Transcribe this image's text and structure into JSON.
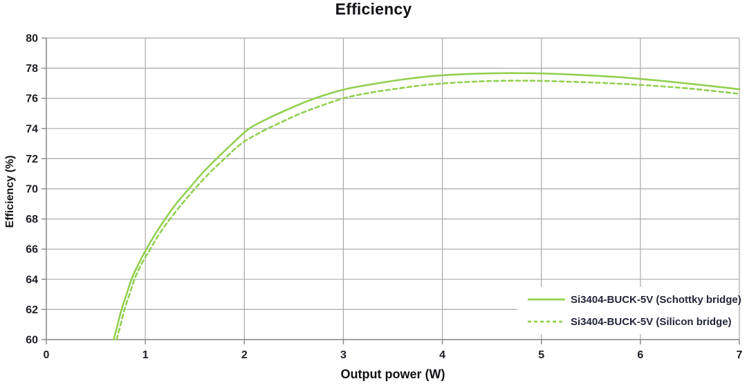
{
  "figure": {
    "title": "Efficiency"
  },
  "chart_data": {
    "type": "line",
    "title": "Efficiency",
    "xlabel": "Output power (W)",
    "ylabel": "Efficiency (%)",
    "xlim": [
      0,
      7
    ],
    "ylim": [
      60,
      80
    ],
    "x_ticks": [
      0,
      1,
      2,
      3,
      4,
      5,
      6,
      7
    ],
    "y_ticks": [
      60,
      62,
      64,
      66,
      68,
      70,
      72,
      74,
      76,
      78,
      80
    ],
    "grid": true,
    "legend_position": "inside bottom-right",
    "series": [
      {
        "name": "Si3404-BUCK-5V (Schottky bridge)",
        "line_style": "solid",
        "color": "#92D050",
        "points": [
          [
            0.68,
            60
          ],
          [
            0.72,
            61
          ],
          [
            0.76,
            62
          ],
          [
            0.81,
            63
          ],
          [
            0.86,
            64
          ],
          [
            0.93,
            65
          ],
          [
            1.01,
            66
          ],
          [
            1.1,
            67
          ],
          [
            1.2,
            68
          ],
          [
            1.31,
            69
          ],
          [
            1.44,
            70
          ],
          [
            1.57,
            71
          ],
          [
            1.72,
            72
          ],
          [
            1.88,
            73
          ],
          [
            2.05,
            74
          ],
          [
            2.25,
            74.7
          ],
          [
            2.45,
            75.3
          ],
          [
            2.65,
            75.85
          ],
          [
            2.85,
            76.3
          ],
          [
            3.05,
            76.65
          ],
          [
            3.3,
            76.95
          ],
          [
            3.6,
            77.25
          ],
          [
            3.9,
            77.48
          ],
          [
            4.2,
            77.6
          ],
          [
            4.6,
            77.67
          ],
          [
            5.0,
            77.65
          ],
          [
            5.4,
            77.55
          ],
          [
            5.8,
            77.4
          ],
          [
            6.2,
            77.17
          ],
          [
            6.6,
            76.9
          ],
          [
            7.0,
            76.6
          ]
        ]
      },
      {
        "name": "Si3404-BUCK-5V (Silicon bridge)",
        "line_style": "dashed",
        "color": "#92D050",
        "points": [
          [
            0.71,
            60
          ],
          [
            0.75,
            61
          ],
          [
            0.79,
            62
          ],
          [
            0.84,
            63
          ],
          [
            0.89,
            64
          ],
          [
            0.96,
            65
          ],
          [
            1.05,
            66
          ],
          [
            1.14,
            67
          ],
          [
            1.25,
            68
          ],
          [
            1.37,
            69
          ],
          [
            1.5,
            70
          ],
          [
            1.64,
            71
          ],
          [
            1.8,
            72
          ],
          [
            1.97,
            73
          ],
          [
            2.15,
            73.7
          ],
          [
            2.35,
            74.35
          ],
          [
            2.55,
            74.95
          ],
          [
            2.75,
            75.45
          ],
          [
            3.0,
            76.0
          ],
          [
            3.25,
            76.35
          ],
          [
            3.55,
            76.65
          ],
          [
            3.85,
            76.9
          ],
          [
            4.15,
            77.05
          ],
          [
            4.5,
            77.15
          ],
          [
            4.9,
            77.17
          ],
          [
            5.3,
            77.1
          ],
          [
            5.7,
            77.0
          ],
          [
            6.1,
            76.85
          ],
          [
            6.5,
            76.65
          ],
          [
            6.75,
            76.48
          ],
          [
            7.0,
            76.3
          ]
        ]
      }
    ]
  },
  "colors": {
    "series_green": "#92D050",
    "gridline": "#A8A8A8",
    "axis_line": "#8C8C8C",
    "text": "#1C1C24",
    "background": "#FFFFFF"
  }
}
